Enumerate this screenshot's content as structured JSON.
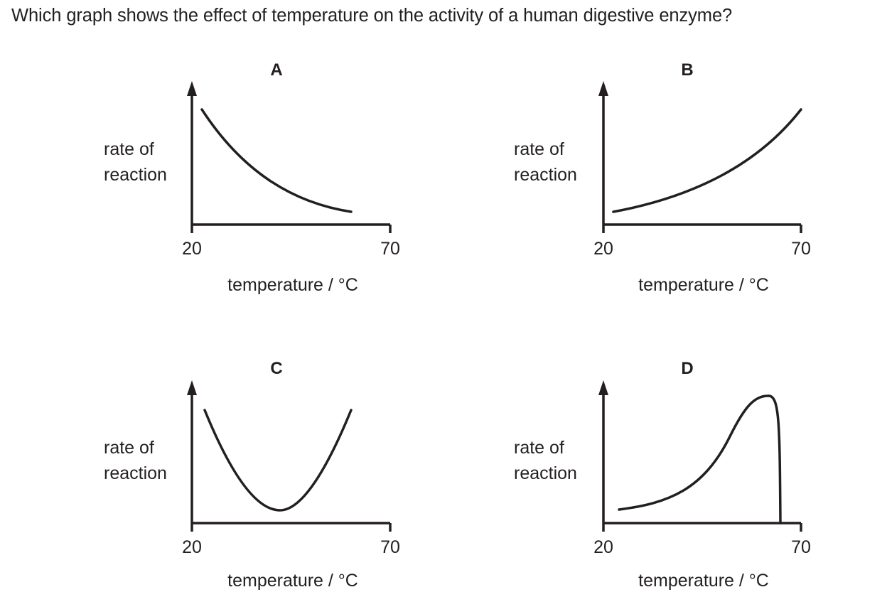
{
  "question": "Which graph shows the effect of temperature on the activity of a human digestive enzyme?",
  "chart_data": [
    {
      "type": "line",
      "title": "A",
      "ylabel": [
        "rate of",
        "reaction"
      ],
      "xlabel": "temperature / °C",
      "xticks": [
        "20",
        "70"
      ],
      "xlim": [
        20,
        70
      ],
      "ylim": [
        0,
        1
      ],
      "series": [
        {
          "x": [
            23,
            30,
            40,
            50,
            60
          ],
          "y": [
            0.88,
            0.62,
            0.36,
            0.18,
            0.08
          ]
        }
      ]
    },
    {
      "type": "line",
      "title": "B",
      "ylabel": [
        "rate of",
        "reaction"
      ],
      "xlabel": "temperature / °C",
      "xticks": [
        "20",
        "70"
      ],
      "xlim": [
        20,
        70
      ],
      "ylim": [
        0,
        1
      ],
      "series": [
        {
          "x": [
            23,
            30,
            40,
            50,
            60,
            67
          ],
          "y": [
            0.08,
            0.14,
            0.26,
            0.44,
            0.68,
            0.88
          ]
        }
      ]
    },
    {
      "type": "line",
      "title": "C",
      "ylabel": [
        "rate of",
        "reaction"
      ],
      "xlabel": "temperature / °C",
      "xticks": [
        "20",
        "70"
      ],
      "xlim": [
        20,
        70
      ],
      "ylim": [
        0,
        1
      ],
      "series": [
        {
          "x": [
            23,
            30,
            35,
            40,
            45,
            52,
            60
          ],
          "y": [
            0.85,
            0.47,
            0.22,
            0.1,
            0.2,
            0.45,
            0.85
          ]
        }
      ]
    },
    {
      "type": "line",
      "title": "D",
      "ylabel": [
        "rate of",
        "reaction"
      ],
      "xlabel": "temperature / °C",
      "xticks": [
        "20",
        "70"
      ],
      "xlim": [
        20,
        70
      ],
      "ylim": [
        0,
        1
      ],
      "series": [
        {
          "x": [
            24,
            35,
            45,
            55,
            60,
            64,
            65
          ],
          "y": [
            0.08,
            0.18,
            0.38,
            0.8,
            0.95,
            0.8,
            0.0
          ]
        }
      ]
    }
  ]
}
